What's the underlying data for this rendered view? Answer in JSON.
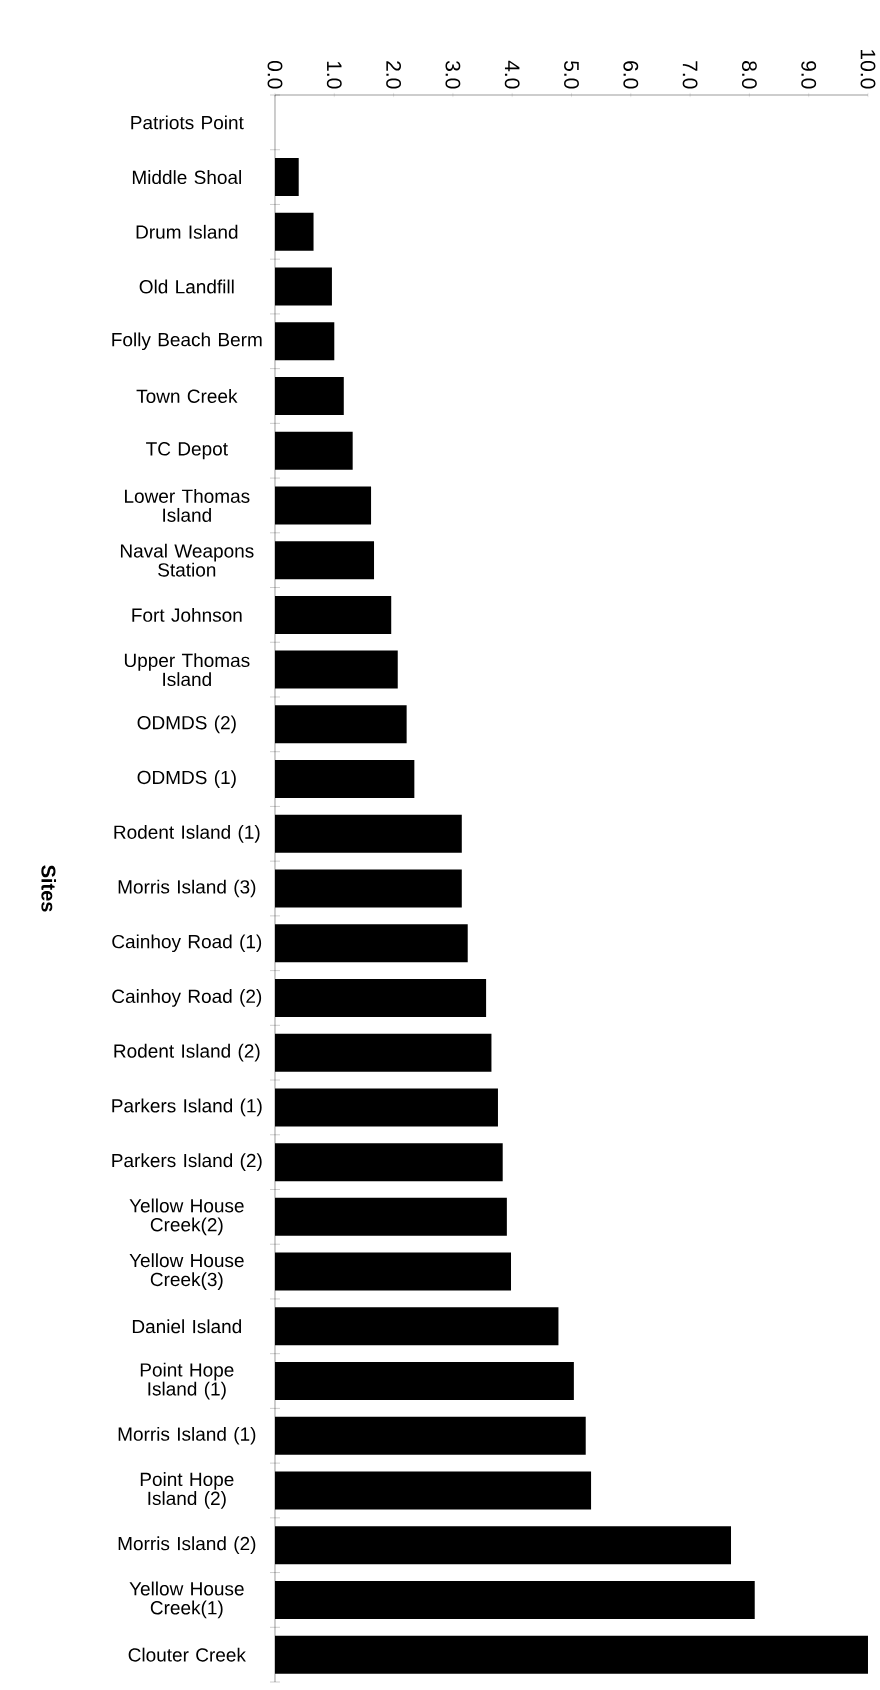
{
  "chart_data": {
    "type": "bar",
    "orientation": "horizontal",
    "ylabel": "Sites",
    "categories": [
      "Patriots Point",
      "Middle Shoal",
      "Drum Island",
      "Old Landfill",
      "Folly Beach Berm",
      "Town Creek",
      "TC Depot",
      "Lower Thomas Island",
      "Naval Weapons Station",
      "Fort Johnson",
      "Upper Thomas Island",
      "ODMDS (2)",
      "ODMDS  (1)",
      "Rodent Island (1)",
      "Morris Island (3)",
      "Cainhoy Road (1)",
      "Cainhoy Road (2)",
      "Rodent Island (2)",
      "Parkers Island (1)",
      "Parkers Island (2)",
      "Yellow House Creek(2)",
      "Yellow House Creek(3)",
      "Daniel Island",
      "Point Hope Island (1)",
      "Morris Island (1)",
      "Point Hope Island (2)",
      "Morris Island (2)",
      "Yellow House Creek(1)",
      "Clouter Creek"
    ],
    "values": [
      0,
      0.4,
      0.65,
      0.96,
      1.0,
      1.16,
      1.31,
      1.62,
      1.67,
      1.96,
      2.07,
      2.22,
      2.35,
      3.15,
      3.15,
      3.25,
      3.56,
      3.65,
      3.76,
      3.84,
      3.91,
      3.98,
      4.78,
      5.04,
      5.24,
      5.33,
      7.69,
      8.09,
      10.0
    ],
    "color": "#000000",
    "xlim": [
      0,
      10
    ],
    "xticks": [
      {
        "value": 0,
        "label": "0.0"
      },
      {
        "value": 1,
        "label": "1.0"
      },
      {
        "value": 2,
        "label": "2.0"
      },
      {
        "value": 3,
        "label": "3.0"
      },
      {
        "value": 4,
        "label": "4.0"
      },
      {
        "value": 5,
        "label": "5.0"
      },
      {
        "value": 6,
        "label": "6.0"
      },
      {
        "value": 7,
        "label": "7.0"
      },
      {
        "value": 8,
        "label": "8.0"
      },
      {
        "value": 9,
        "label": "9.0"
      },
      {
        "value": 10,
        "label": "10.0"
      }
    ],
    "grid": false
  }
}
